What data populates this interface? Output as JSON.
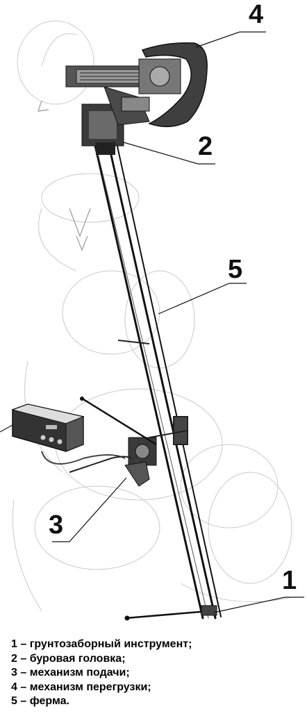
{
  "callouts": [
    {
      "number": "1"
    },
    {
      "number": "2"
    },
    {
      "number": "3"
    },
    {
      "number": "4"
    },
    {
      "number": "5"
    }
  ],
  "legend": [
    "1 – грунтозаборный инструмент;",
    "2 – буровая головка;",
    "3 – механизм подачи;",
    "4 – механизм перегрузки;",
    "5 – ферма."
  ]
}
